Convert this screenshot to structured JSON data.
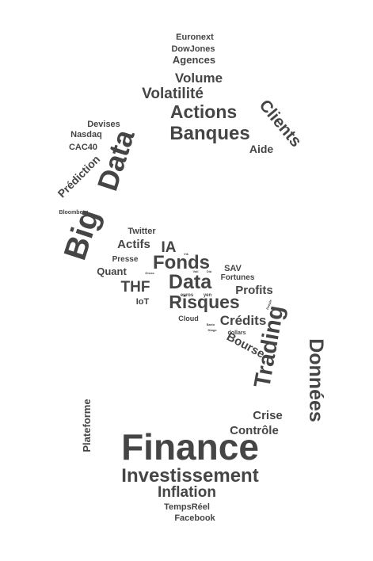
{
  "text_color": "#454545",
  "words": [
    "Euronext",
    "DowJones",
    "Agences",
    "Volume",
    "Volatilité",
    "Actions",
    "Clients",
    "Devises",
    "Nasdaq",
    "CAC40",
    "Banques",
    "Aide",
    "Big",
    "Data",
    "Prédiction",
    "Bloomberg",
    "Twitter",
    "Actifs",
    "IA",
    "Vik",
    "Presse",
    "Fonds",
    "SAV",
    "Quant",
    "Gross",
    "Vali",
    "Dia",
    "Fortunes",
    "Data",
    "THF",
    "Profits",
    "euros",
    "yen",
    "IoT",
    "Risques",
    "People",
    "Cloud",
    "Barto",
    "Diago",
    "dollars",
    "Crédits",
    "Trading",
    "Bourse",
    "Données",
    "Plateforme",
    "Crise",
    "Contrôle",
    "Finance",
    "Investissement",
    "Inflation",
    "TempsRéel",
    "Facebook"
  ]
}
